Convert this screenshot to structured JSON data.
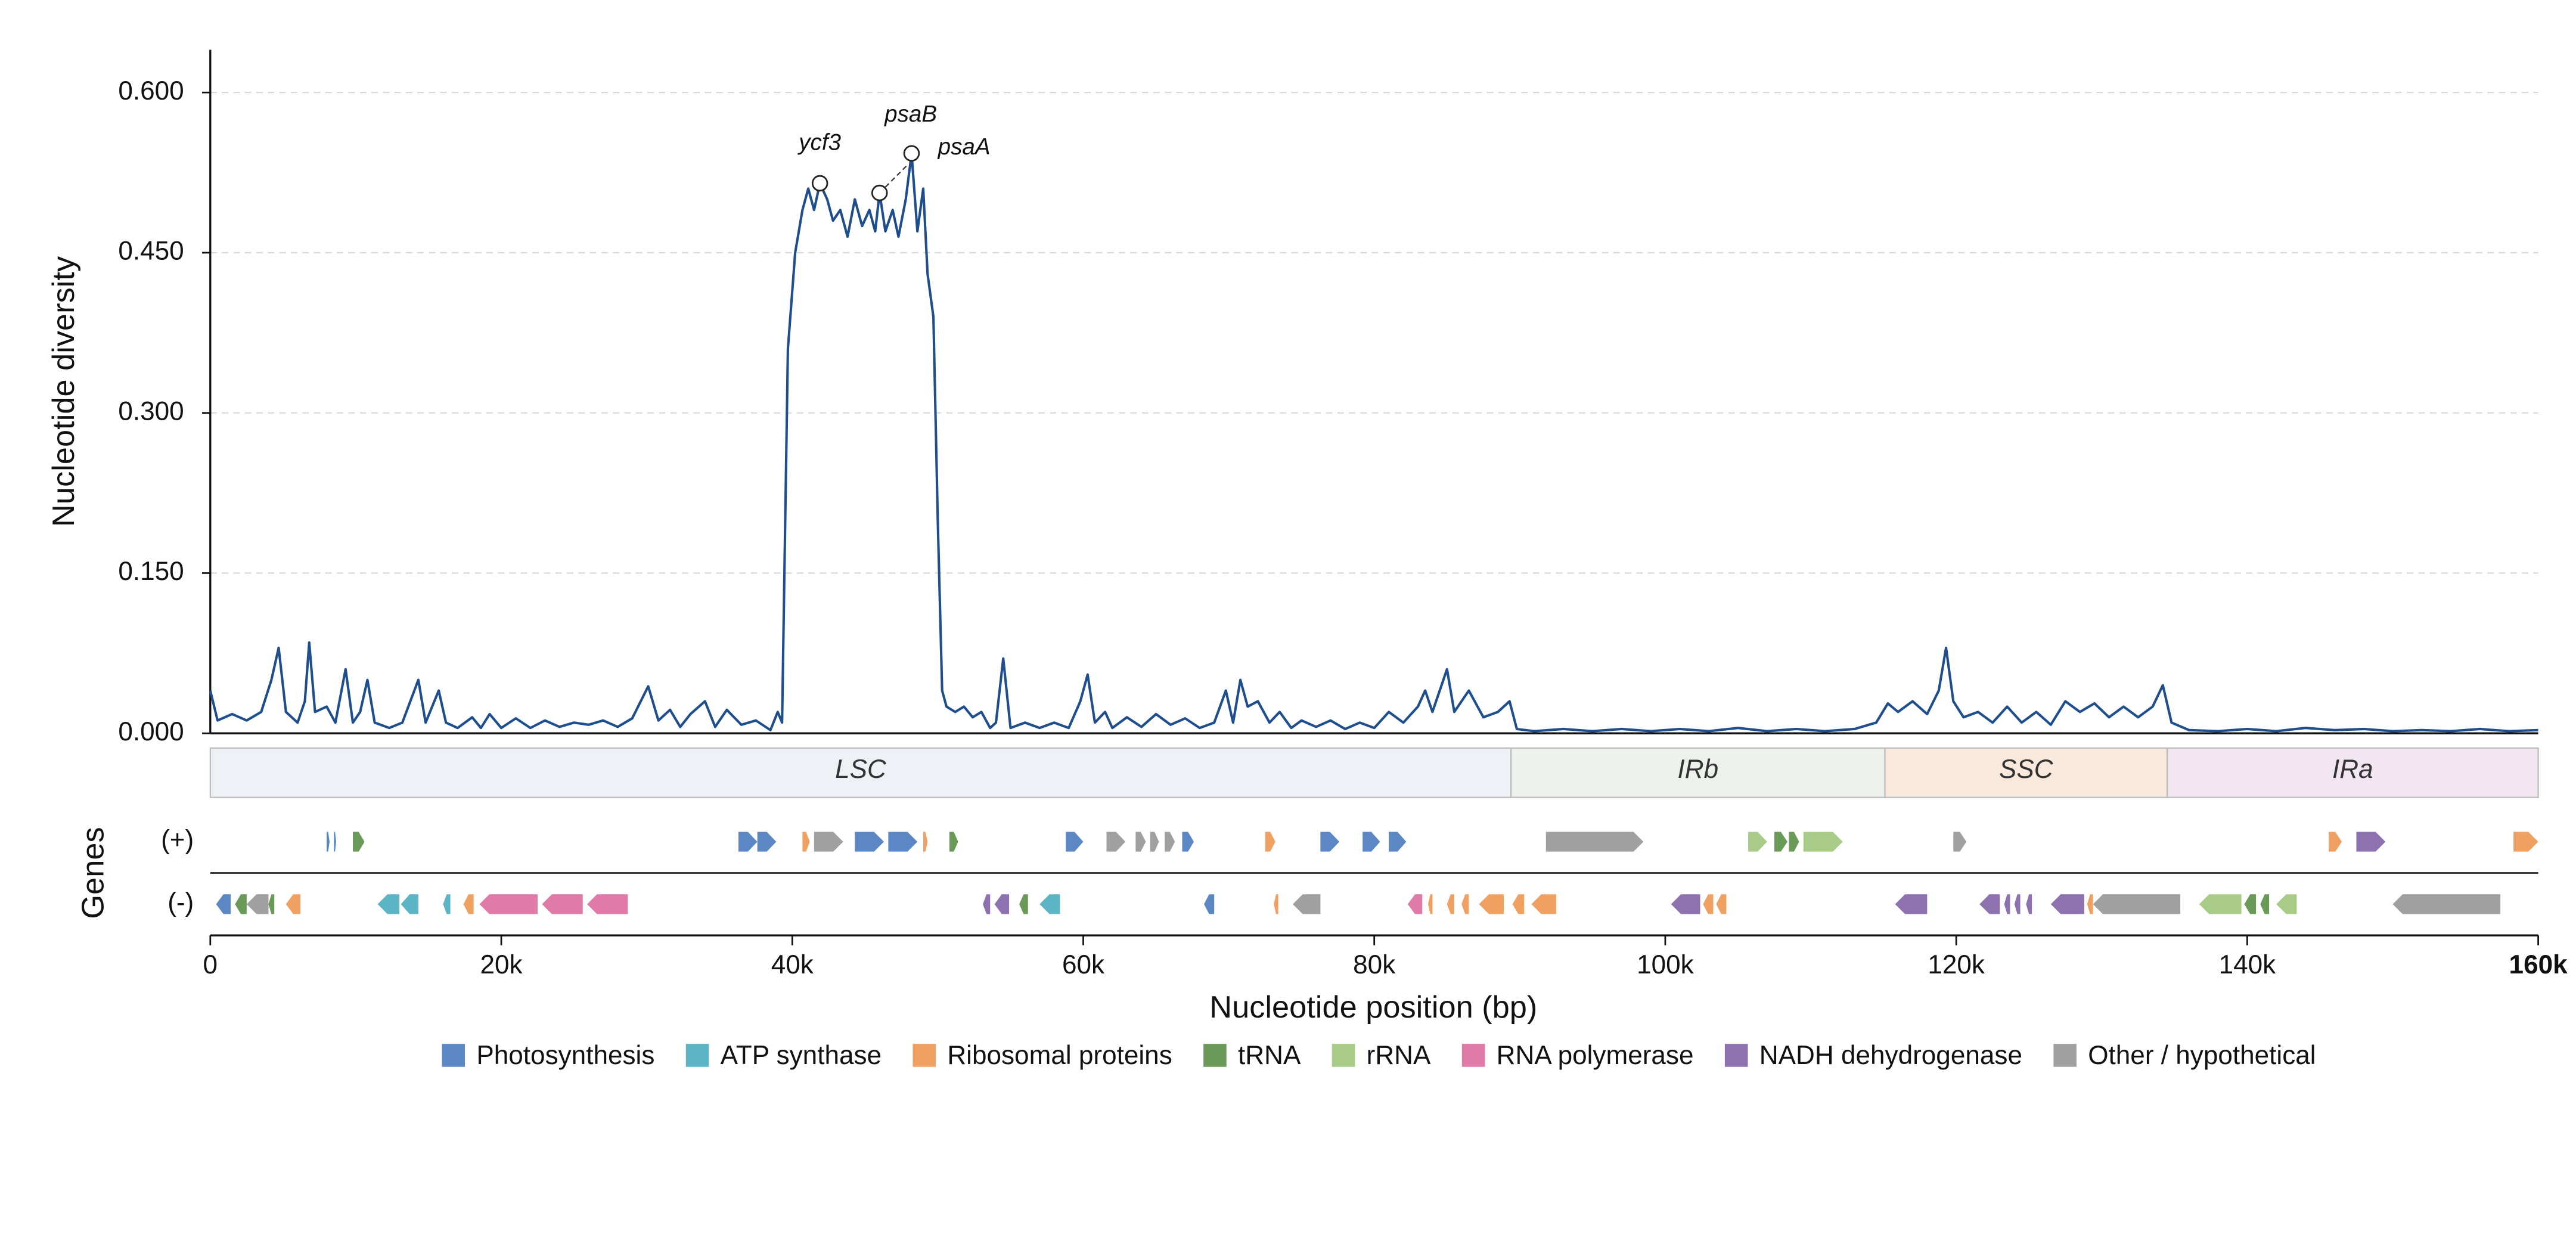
{
  "chart_data": {
    "type": "line",
    "ylabel": "Nucleotide diversity",
    "xlabel": "Nucleotide position (bp)",
    "color": "#1f4e8f",
    "grid": true,
    "xlim": [
      0,
      160000
    ],
    "ylim": [
      0,
      0.64
    ],
    "xticks": [
      0,
      {
        "value": 20000,
        "label": "20k"
      },
      {
        "value": 40000,
        "label": "40k"
      },
      {
        "value": 60000,
        "label": "60k"
      },
      {
        "value": 80000,
        "label": "80k"
      },
      {
        "value": 100000,
        "label": "100k"
      },
      {
        "value": 120000,
        "label": "120k"
      },
      {
        "value": 140000,
        "label": "140k"
      },
      {
        "value": 160000,
        "label": "160k"
      }
    ],
    "yticks": [
      {
        "value": 0,
        "label": "0.000"
      },
      {
        "value": 0.15,
        "label": "0.150"
      },
      {
        "value": 0.3,
        "label": "0.300"
      },
      {
        "value": 0.45,
        "label": "0.450"
      },
      {
        "value": 0.6,
        "label": "0.600"
      }
    ],
    "x": [
      0,
      500,
      1500,
      2500,
      3500,
      4200,
      4700,
      5200,
      6000,
      6500,
      6800,
      7200,
      8000,
      8600,
      9300,
      9800,
      10300,
      10800,
      11300,
      12300,
      13200,
      14300,
      14800,
      15700,
      16200,
      17000,
      18000,
      18600,
      19200,
      20000,
      21000,
      22000,
      23000,
      24000,
      25000,
      26000,
      27000,
      28000,
      29000,
      30100,
      30800,
      31600,
      32300,
      33000,
      34000,
      34700,
      35500,
      36500,
      37500,
      38500,
      39000,
      39300,
      39700,
      40200,
      40700,
      41100,
      41500,
      41900,
      42400,
      42800,
      43300,
      43800,
      44300,
      44800,
      45300,
      45700,
      46000,
      46400,
      46900,
      47300,
      47800,
      48200,
      48600,
      49000,
      49300,
      49700,
      50000,
      50300,
      50600,
      51200,
      51800,
      52400,
      53000,
      53600,
      54000,
      54500,
      55000,
      56000,
      57000,
      58000,
      59000,
      59800,
      60300,
      60800,
      61500,
      62000,
      63000,
      64000,
      65000,
      66000,
      67000,
      68000,
      69000,
      69800,
      70300,
      70800,
      71300,
      72000,
      72800,
      73500,
      74300,
      75000,
      76000,
      77000,
      78000,
      79000,
      80000,
      81000,
      82000,
      83000,
      83500,
      84000,
      85000,
      85500,
      86500,
      87500,
      88500,
      89300,
      89800,
      91000,
      93000,
      95000,
      97000,
      99000,
      101000,
      103000,
      105000,
      107000,
      109000,
      111000,
      113000,
      114500,
      115300,
      116000,
      117000,
      118000,
      118800,
      119300,
      119800,
      120500,
      121500,
      122500,
      123500,
      124500,
      125500,
      126500,
      127500,
      128500,
      129500,
      130500,
      131500,
      132500,
      133500,
      134200,
      134800,
      136000,
      138000,
      140000,
      142000,
      144000,
      146000,
      148000,
      150000,
      152000,
      154000,
      156000,
      158000,
      160000
    ],
    "values": [
      0.04,
      0.012,
      0.018,
      0.012,
      0.02,
      0.05,
      0.08,
      0.02,
      0.01,
      0.03,
      0.085,
      0.02,
      0.025,
      0.01,
      0.06,
      0.01,
      0.02,
      0.05,
      0.01,
      0.005,
      0.01,
      0.05,
      0.01,
      0.04,
      0.01,
      0.005,
      0.015,
      0.005,
      0.018,
      0.005,
      0.014,
      0.005,
      0.012,
      0.006,
      0.01,
      0.008,
      0.012,
      0.006,
      0.014,
      0.044,
      0.012,
      0.022,
      0.006,
      0.018,
      0.03,
      0.006,
      0.022,
      0.008,
      0.012,
      0.003,
      0.02,
      0.01,
      0.36,
      0.45,
      0.49,
      0.51,
      0.49,
      0.515,
      0.5,
      0.48,
      0.49,
      0.465,
      0.5,
      0.475,
      0.49,
      0.47,
      0.506,
      0.47,
      0.49,
      0.465,
      0.5,
      0.543,
      0.47,
      0.51,
      0.43,
      0.39,
      0.2,
      0.04,
      0.025,
      0.02,
      0.025,
      0.015,
      0.02,
      0.005,
      0.01,
      0.07,
      0.005,
      0.01,
      0.005,
      0.01,
      0.005,
      0.03,
      0.055,
      0.01,
      0.02,
      0.005,
      0.015,
      0.006,
      0.018,
      0.008,
      0.014,
      0.005,
      0.01,
      0.04,
      0.01,
      0.05,
      0.025,
      0.03,
      0.01,
      0.02,
      0.005,
      0.012,
      0.006,
      0.012,
      0.004,
      0.01,
      0.005,
      0.02,
      0.01,
      0.025,
      0.04,
      0.02,
      0.06,
      0.02,
      0.04,
      0.015,
      0.02,
      0.03,
      0.004,
      0.002,
      0.004,
      0.002,
      0.004,
      0.002,
      0.004,
      0.002,
      0.005,
      0.002,
      0.004,
      0.002,
      0.004,
      0.01,
      0.028,
      0.02,
      0.03,
      0.018,
      0.04,
      0.08,
      0.03,
      0.015,
      0.02,
      0.01,
      0.025,
      0.01,
      0.02,
      0.008,
      0.03,
      0.02,
      0.028,
      0.015,
      0.025,
      0.015,
      0.025,
      0.045,
      0.01,
      0.003,
      0.002,
      0.004,
      0.002,
      0.005,
      0.003,
      0.004,
      0.002,
      0.003,
      0.002,
      0.004,
      0.002,
      0.003
    ],
    "annotations": [
      {
        "text": "ycf3",
        "x": 41900,
        "y": 0.515
      },
      {
        "text": "psaB",
        "x": 46000,
        "y": 0.506
      },
      {
        "text": "psaA",
        "x": 48200,
        "y": 0.543
      }
    ],
    "regions": [
      {
        "name": "LSC",
        "start": 0,
        "end": 89400,
        "color": "#eef2f6"
      },
      {
        "name": "IRb",
        "start": 89400,
        "end": 115100,
        "color": "#edf3ec"
      },
      {
        "name": "SSC",
        "start": 115100,
        "end": 134500,
        "color": "#f9e9dc"
      },
      {
        "name": "IRa",
        "start": 134500,
        "end": 160000,
        "color": "#f1e6f1"
      }
    ],
    "gene_track_title": "Genes",
    "tracks": [
      "(+)",
      "(-)"
    ],
    "gene_categories": [
      {
        "name": "Photosynthesis",
        "color": "#5b88c4"
      },
      {
        "name": "ATP synthase",
        "color": "#5bb5c4"
      },
      {
        "name": "Ribosomal proteins",
        "color": "#f0a060"
      },
      {
        "name": "tRNA",
        "color": "#6a9a58"
      },
      {
        "name": "rRNA",
        "color": "#a8cc88"
      },
      {
        "name": "RNA polymerase",
        "color": "#e07aa8"
      },
      {
        "name": "NADH dehydrogenase",
        "color": "#8e72b0"
      },
      {
        "name": "Other / hypothetical",
        "color": "#a0a0a0"
      }
    ],
    "genes": [
      {
        "start": 8000,
        "end": 8200,
        "strand": "+",
        "category": "Photosynthesis"
      },
      {
        "start": 8500,
        "end": 8650,
        "strand": "+",
        "category": "Photosynthesis"
      },
      {
        "start": 9800,
        "end": 10600,
        "strand": "+",
        "category": "tRNA"
      },
      {
        "start": 36300,
        "end": 37600,
        "strand": "+",
        "category": "Photosynthesis"
      },
      {
        "start": 37600,
        "end": 38900,
        "strand": "+",
        "category": "Photosynthesis"
      },
      {
        "start": 40700,
        "end": 41200,
        "strand": "+",
        "category": "Ribosomal proteins"
      },
      {
        "start": 41500,
        "end": 43500,
        "strand": "+",
        "category": "Other / hypothetical"
      },
      {
        "start": 44300,
        "end": 46300,
        "strand": "+",
        "category": "Photosynthesis"
      },
      {
        "start": 46600,
        "end": 48600,
        "strand": "+",
        "category": "Photosynthesis"
      },
      {
        "start": 49000,
        "end": 49300,
        "strand": "+",
        "category": "Ribosomal proteins"
      },
      {
        "start": 50800,
        "end": 51400,
        "strand": "+",
        "category": "tRNA"
      },
      {
        "start": 58800,
        "end": 60000,
        "strand": "+",
        "category": "Photosynthesis"
      },
      {
        "start": 61600,
        "end": 62900,
        "strand": "+",
        "category": "Other / hypothetical"
      },
      {
        "start": 63600,
        "end": 64300,
        "strand": "+",
        "category": "Other / hypothetical"
      },
      {
        "start": 64600,
        "end": 65200,
        "strand": "+",
        "category": "Other / hypothetical"
      },
      {
        "start": 65600,
        "end": 66300,
        "strand": "+",
        "category": "Other / hypothetical"
      },
      {
        "start": 66800,
        "end": 67600,
        "strand": "+",
        "category": "Photosynthesis"
      },
      {
        "start": 72500,
        "end": 73200,
        "strand": "+",
        "category": "Ribosomal proteins"
      },
      {
        "start": 76300,
        "end": 77600,
        "strand": "+",
        "category": "Photosynthesis"
      },
      {
        "start": 79200,
        "end": 80400,
        "strand": "+",
        "category": "Photosynthesis"
      },
      {
        "start": 81000,
        "end": 82200,
        "strand": "+",
        "category": "Photosynthesis"
      },
      {
        "start": 91800,
        "end": 98500,
        "strand": "+",
        "category": "Other / hypothetical"
      },
      {
        "start": 105700,
        "end": 107000,
        "strand": "+",
        "category": "rRNA"
      },
      {
        "start": 107500,
        "end": 108400,
        "strand": "+",
        "category": "tRNA"
      },
      {
        "start": 108500,
        "end": 109200,
        "strand": "+",
        "category": "tRNA"
      },
      {
        "start": 109500,
        "end": 112200,
        "strand": "+",
        "category": "rRNA"
      },
      {
        "start": 119800,
        "end": 120700,
        "strand": "+",
        "category": "Other / hypothetical"
      },
      {
        "start": 145600,
        "end": 146500,
        "strand": "+",
        "category": "Ribosomal proteins"
      },
      {
        "start": 147500,
        "end": 149500,
        "strand": "+",
        "category": "NADH dehydrogenase"
      },
      {
        "start": 158300,
        "end": 160000,
        "strand": "+",
        "category": "Ribosomal proteins"
      },
      {
        "start": 400,
        "end": 1400,
        "strand": "-",
        "category": "Photosynthesis"
      },
      {
        "start": 1700,
        "end": 2500,
        "strand": "-",
        "category": "tRNA"
      },
      {
        "start": 2500,
        "end": 4000,
        "strand": "-",
        "category": "Other / hypothetical"
      },
      {
        "start": 4000,
        "end": 4400,
        "strand": "-",
        "category": "tRNA"
      },
      {
        "start": 5200,
        "end": 6200,
        "strand": "-",
        "category": "Ribosomal proteins"
      },
      {
        "start": 11500,
        "end": 13000,
        "strand": "-",
        "category": "ATP synthase"
      },
      {
        "start": 13100,
        "end": 14300,
        "strand": "-",
        "category": "ATP synthase"
      },
      {
        "start": 16000,
        "end": 16500,
        "strand": "-",
        "category": "ATP synthase"
      },
      {
        "start": 17400,
        "end": 18100,
        "strand": "-",
        "category": "Ribosomal proteins"
      },
      {
        "start": 18500,
        "end": 22500,
        "strand": "-",
        "category": "RNA polymerase"
      },
      {
        "start": 22800,
        "end": 25600,
        "strand": "-",
        "category": "RNA polymerase"
      },
      {
        "start": 25900,
        "end": 28700,
        "strand": "-",
        "category": "RNA polymerase"
      },
      {
        "start": 53100,
        "end": 53600,
        "strand": "-",
        "category": "NADH dehydrogenase"
      },
      {
        "start": 53900,
        "end": 54900,
        "strand": "-",
        "category": "NADH dehydrogenase"
      },
      {
        "start": 55600,
        "end": 56200,
        "strand": "-",
        "category": "tRNA"
      },
      {
        "start": 57000,
        "end": 58400,
        "strand": "-",
        "category": "ATP synthase"
      },
      {
        "start": 68300,
        "end": 69000,
        "strand": "-",
        "category": "Photosynthesis"
      },
      {
        "start": 73100,
        "end": 73400,
        "strand": "-",
        "category": "Ribosomal proteins"
      },
      {
        "start": 74400,
        "end": 76300,
        "strand": "-",
        "category": "Other / hypothetical"
      },
      {
        "start": 82300,
        "end": 83300,
        "strand": "-",
        "category": "RNA polymerase"
      },
      {
        "start": 83700,
        "end": 84000,
        "strand": "-",
        "category": "Ribosomal proteins"
      },
      {
        "start": 85000,
        "end": 85500,
        "strand": "-",
        "category": "Ribosomal proteins"
      },
      {
        "start": 86000,
        "end": 86500,
        "strand": "-",
        "category": "Ribosomal proteins"
      },
      {
        "start": 87200,
        "end": 88900,
        "strand": "-",
        "category": "Ribosomal proteins"
      },
      {
        "start": 89500,
        "end": 90300,
        "strand": "-",
        "category": "Ribosomal proteins"
      },
      {
        "start": 90800,
        "end": 92500,
        "strand": "-",
        "category": "Ribosomal proteins"
      },
      {
        "start": 100400,
        "end": 102400,
        "strand": "-",
        "category": "NADH dehydrogenase"
      },
      {
        "start": 102600,
        "end": 103300,
        "strand": "-",
        "category": "Ribosomal proteins"
      },
      {
        "start": 103500,
        "end": 104200,
        "strand": "-",
        "category": "Ribosomal proteins"
      },
      {
        "start": 115800,
        "end": 118000,
        "strand": "-",
        "category": "NADH dehydrogenase"
      },
      {
        "start": 121600,
        "end": 123000,
        "strand": "-",
        "category": "NADH dehydrogenase"
      },
      {
        "start": 123300,
        "end": 123700,
        "strand": "-",
        "category": "NADH dehydrogenase"
      },
      {
        "start": 124000,
        "end": 124400,
        "strand": "-",
        "category": "NADH dehydrogenase"
      },
      {
        "start": 124800,
        "end": 125200,
        "strand": "-",
        "category": "NADH dehydrogenase"
      },
      {
        "start": 126500,
        "end": 128800,
        "strand": "-",
        "category": "NADH dehydrogenase"
      },
      {
        "start": 129000,
        "end": 129400,
        "strand": "-",
        "category": "Ribosomal proteins"
      },
      {
        "start": 129400,
        "end": 135400,
        "strand": "-",
        "category": "Other / hypothetical"
      },
      {
        "start": 136700,
        "end": 139600,
        "strand": "-",
        "category": "rRNA"
      },
      {
        "start": 139800,
        "end": 140600,
        "strand": "-",
        "category": "tRNA"
      },
      {
        "start": 140900,
        "end": 141500,
        "strand": "-",
        "category": "tRNA"
      },
      {
        "start": 142000,
        "end": 143400,
        "strand": "-",
        "category": "rRNA"
      },
      {
        "start": 150000,
        "end": 157400,
        "strand": "-",
        "category": "Other / hypothetical"
      }
    ]
  }
}
